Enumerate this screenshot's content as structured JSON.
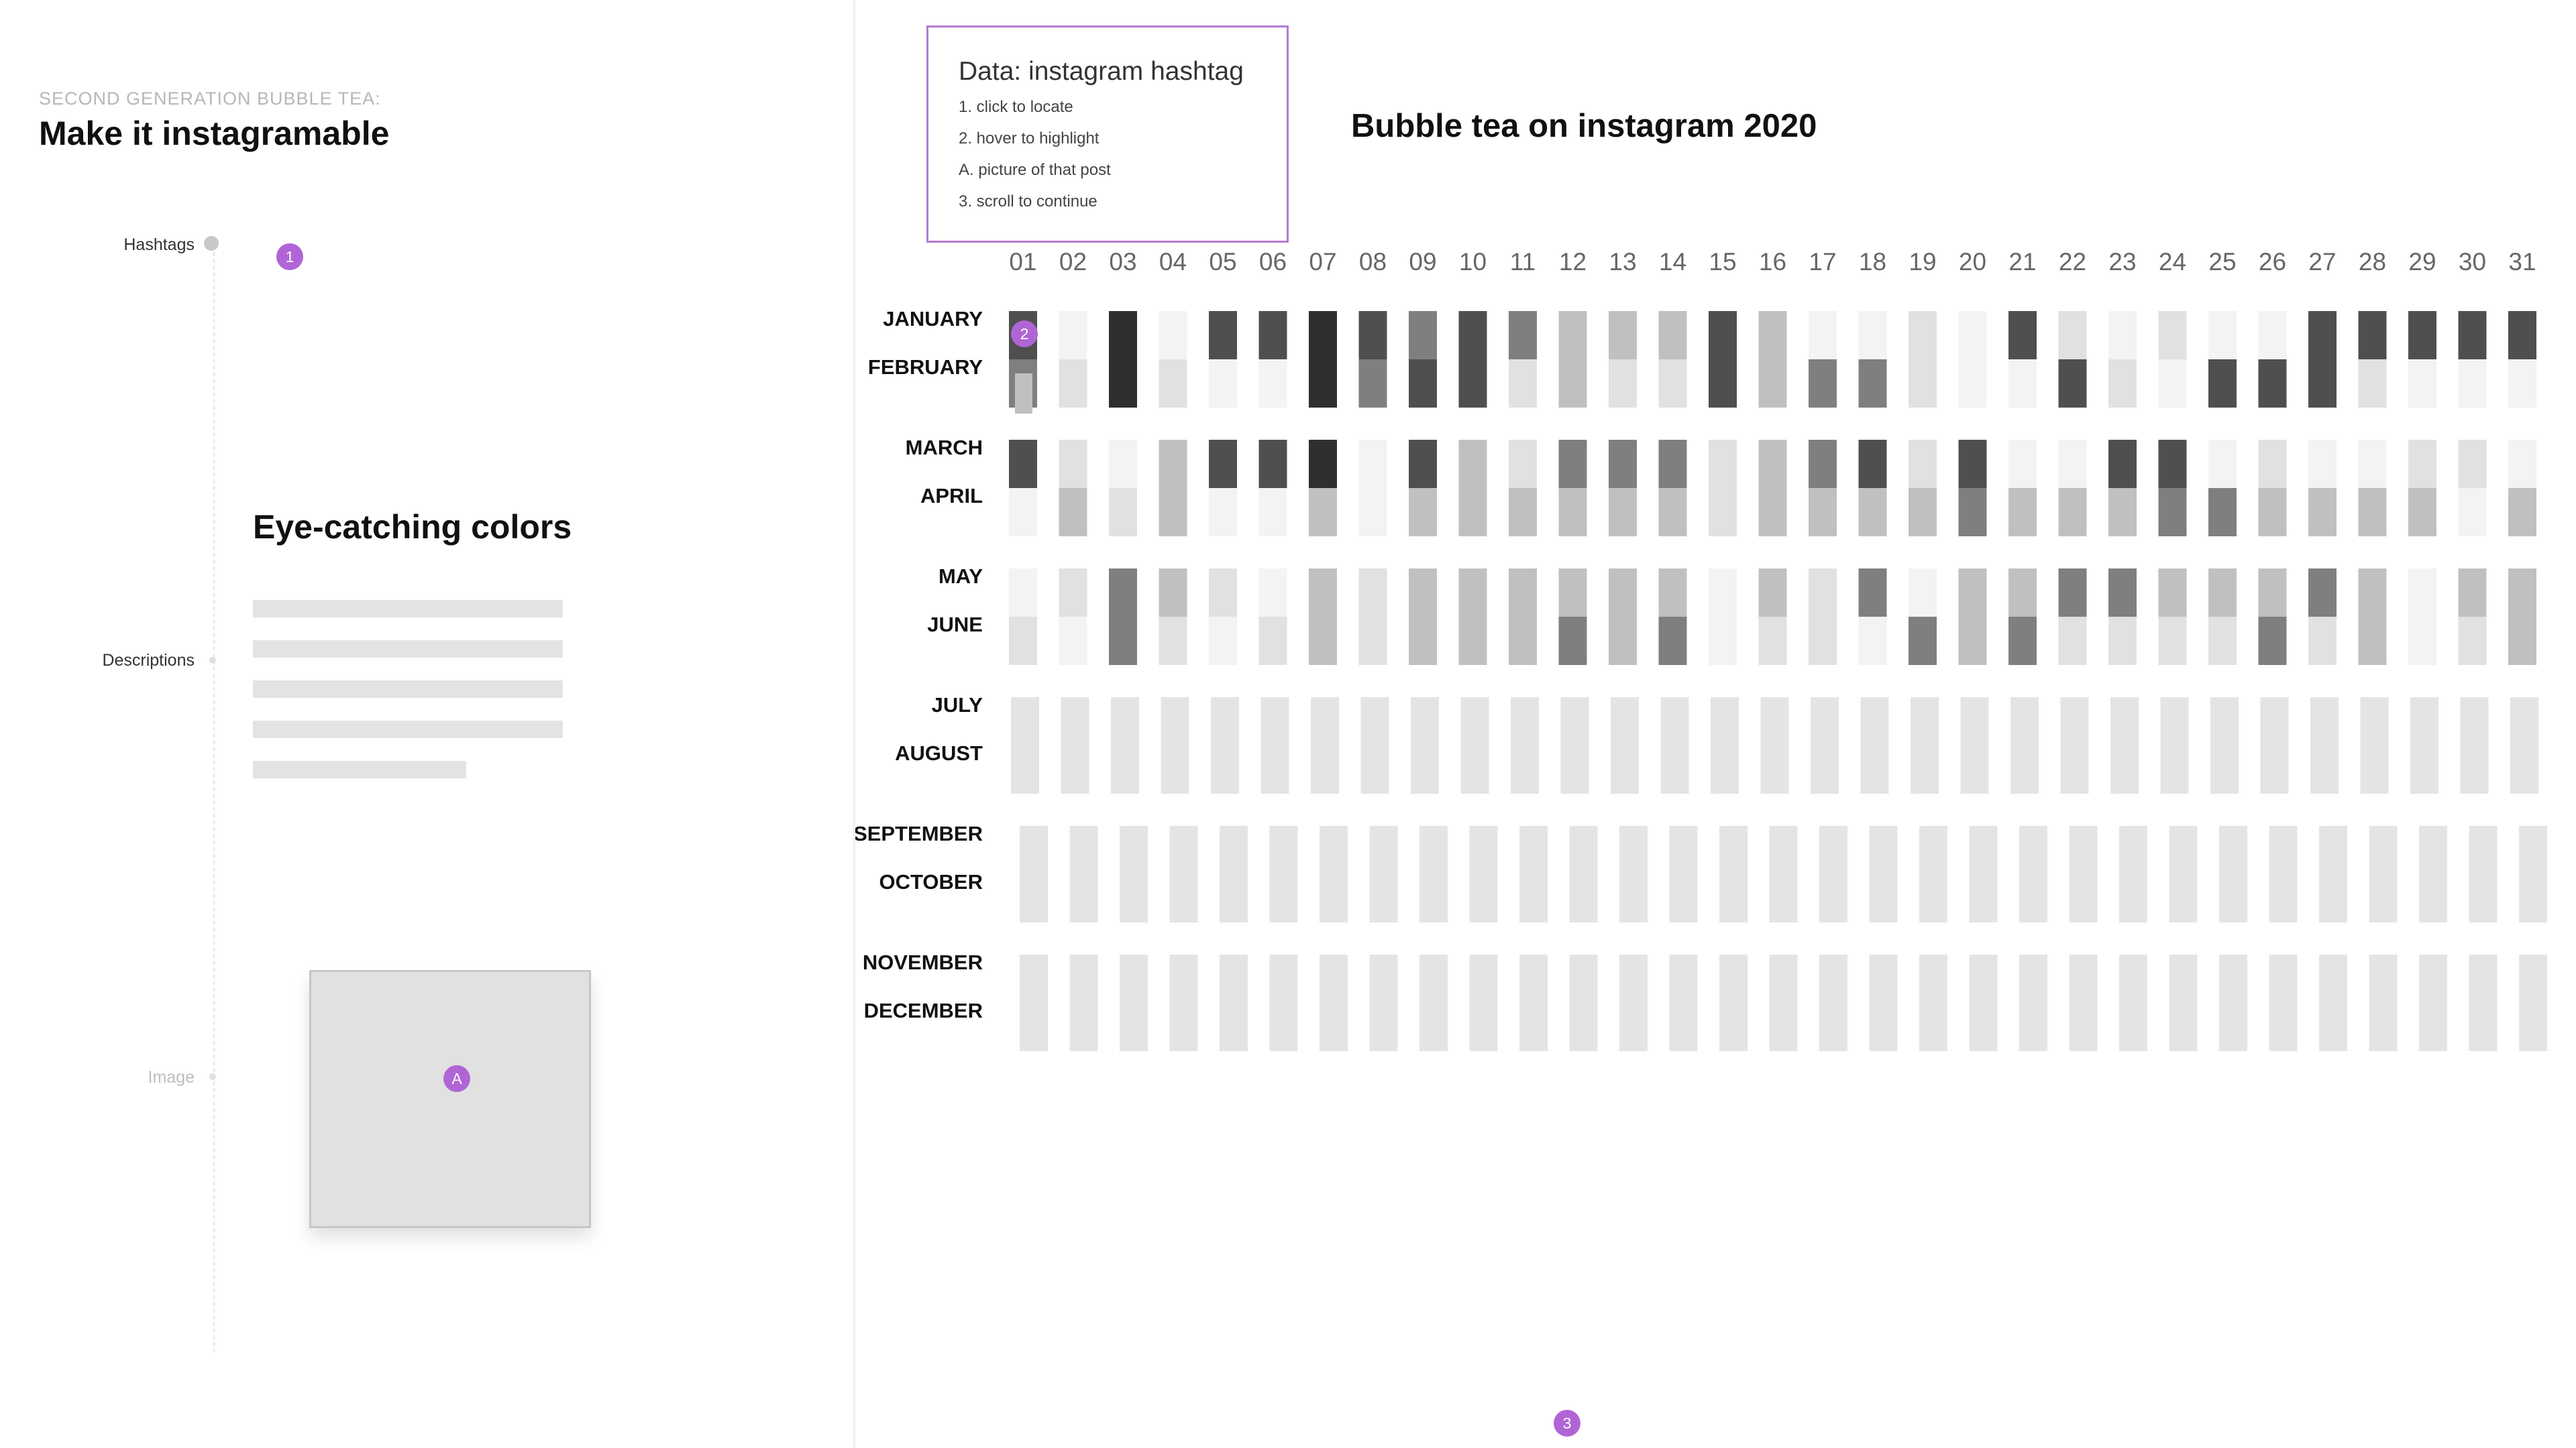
{
  "left": {
    "kicker": "SECOND GENERATION BUBBLE TEA:",
    "title": "Make it instagramable",
    "timeline": [
      {
        "label": "Hashtags",
        "badge": "1"
      },
      {
        "label": "Descriptions"
      },
      {
        "label": "Image",
        "badge": "A"
      }
    ],
    "section_title": "Eye-catching colors"
  },
  "legend": {
    "title": "Data: instagram hashtag",
    "items": [
      "1. click to locate",
      "2. hover to highlight",
      "A. picture of that post",
      "3. scroll to continue"
    ]
  },
  "chart_badges": {
    "january_first": "2",
    "scroll": "3"
  },
  "colors": {
    "accent": "#b065d6",
    "empty": "#e4e4e4",
    "levels": [
      "#f3f3f3",
      "#e1e1e1",
      "#c0c0c0",
      "#7f7f7f",
      "#4f4f4f",
      "#2f2f2f"
    ]
  },
  "chart_data": {
    "type": "heatmap",
    "title": "Bubble tea on instagram 2020",
    "x": [
      "01",
      "02",
      "03",
      "04",
      "05",
      "06",
      "07",
      "08",
      "09",
      "10",
      "11",
      "12",
      "13",
      "14",
      "15",
      "16",
      "17",
      "18",
      "19",
      "20",
      "21",
      "22",
      "23",
      "24",
      "25",
      "26",
      "27",
      "28",
      "29",
      "30",
      "31"
    ],
    "y": [
      "JANUARY",
      "FEBRUARY",
      "MARCH",
      "APRIL",
      "MAY",
      "JUNE",
      "JULY",
      "AUGUST",
      "SEPTEMBER",
      "OCTOBER",
      "NOVEMBER",
      "DECEMBER"
    ],
    "value_scale": "0 = no data, 1-6 = light to dark grey",
    "values": [
      [
        5,
        1,
        6,
        1,
        5,
        5,
        6,
        5,
        4,
        5,
        4,
        3,
        3,
        3,
        5,
        3,
        1,
        1,
        2,
        1,
        5,
        2,
        1,
        2,
        1,
        1,
        5,
        5,
        5,
        5,
        5
      ],
      [
        4,
        2,
        6,
        2,
        1,
        1,
        6,
        4,
        5,
        5,
        2,
        3,
        2,
        2,
        5,
        3,
        4,
        4,
        2,
        1,
        1,
        5,
        2,
        1,
        5,
        5,
        5,
        2,
        1,
        1,
        1
      ],
      [
        5,
        2,
        1,
        3,
        5,
        5,
        6,
        1,
        5,
        3,
        2,
        4,
        4,
        4,
        2,
        3,
        4,
        5,
        2,
        5,
        1,
        1,
        5,
        5,
        1,
        2,
        1,
        1,
        2,
        2,
        1
      ],
      [
        1,
        3,
        2,
        3,
        1,
        1,
        3,
        1,
        3,
        3,
        3,
        3,
        3,
        3,
        2,
        3,
        3,
        3,
        3,
        4,
        3,
        3,
        3,
        4,
        4,
        3,
        3,
        3,
        3,
        1,
        3
      ],
      [
        1,
        2,
        4,
        3,
        2,
        1,
        3,
        2,
        3,
        3,
        3,
        3,
        3,
        3,
        1,
        3,
        2,
        4,
        1,
        3,
        3,
        4,
        4,
        3,
        3,
        3,
        4,
        3,
        1,
        3,
        3
      ],
      [
        2,
        1,
        4,
        2,
        1,
        2,
        3,
        2,
        3,
        3,
        3,
        4,
        3,
        4,
        1,
        2,
        2,
        1,
        4,
        3,
        4,
        2,
        2,
        2,
        2,
        4,
        2,
        3,
        1,
        2,
        3
      ],
      [
        0,
        0,
        0,
        0,
        0,
        0,
        0,
        0,
        0,
        0,
        0,
        0,
        0,
        0,
        0,
        0,
        0,
        0,
        0,
        0,
        0,
        0,
        0,
        0,
        0,
        0,
        0,
        0,
        0,
        0,
        0
      ],
      [
        0,
        0,
        0,
        0,
        0,
        0,
        0,
        0,
        0,
        0,
        0,
        0,
        0,
        0,
        0,
        0,
        0,
        0,
        0,
        0,
        0,
        0,
        0,
        0,
        0,
        0,
        0,
        0,
        0,
        0,
        0
      ],
      [
        0,
        0,
        0,
        0,
        0,
        0,
        0,
        0,
        0,
        0,
        0,
        0,
        0,
        0,
        0,
        0,
        0,
        0,
        0,
        0,
        0,
        0,
        0,
        0,
        0,
        0,
        0,
        0,
        0,
        0,
        0
      ],
      [
        0,
        0,
        0,
        0,
        0,
        0,
        0,
        0,
        0,
        0,
        0,
        0,
        0,
        0,
        0,
        0,
        0,
        0,
        0,
        0,
        0,
        0,
        0,
        0,
        0,
        0,
        0,
        0,
        0,
        0,
        0
      ],
      [
        0,
        0,
        0,
        0,
        0,
        0,
        0,
        0,
        0,
        0,
        0,
        0,
        0,
        0,
        0,
        0,
        0,
        0,
        0,
        0,
        0,
        0,
        0,
        0,
        0,
        0,
        0,
        0,
        0,
        0,
        0
      ],
      [
        0,
        0,
        0,
        0,
        0,
        0,
        0,
        0,
        0,
        0,
        0,
        0,
        0,
        0,
        0,
        0,
        0,
        0,
        0,
        0,
        0,
        0,
        0,
        0,
        0,
        0,
        0,
        0,
        0,
        0,
        0
      ]
    ]
  }
}
